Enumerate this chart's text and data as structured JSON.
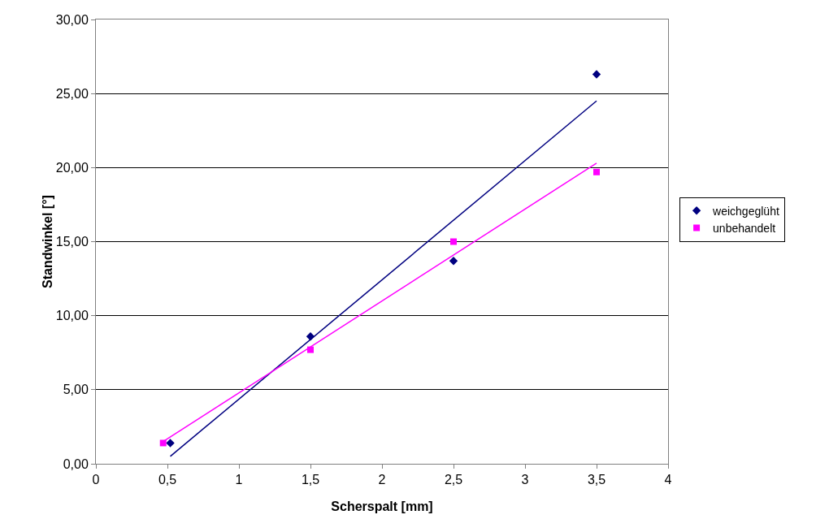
{
  "chart_data": {
    "type": "scatter",
    "xlabel": "Scherspalt [mm]",
    "ylabel": "Standwinkel [°]",
    "series": [
      {
        "name": "weichgeglüht",
        "color": "#000080",
        "marker": "diamond",
        "x": [
          0.52,
          1.5,
          2.5,
          3.5
        ],
        "values": [
          1.4,
          8.6,
          13.7,
          26.3
        ]
      },
      {
        "name": "unbehandelt",
        "color": "#ff00ff",
        "marker": "square",
        "x": [
          0.47,
          1.5,
          2.5,
          3.5
        ],
        "values": [
          1.4,
          7.7,
          15.0,
          19.7
        ]
      },
      {
        "type": "line",
        "color": "#000080",
        "marker": "none",
        "x": [
          0.52,
          3.5
        ],
        "values": [
          0.5,
          24.5
        ]
      },
      {
        "type": "line",
        "color": "#ff00ff",
        "marker": "none",
        "x": [
          0.47,
          3.5
        ],
        "values": [
          1.5,
          20.3
        ]
      }
    ],
    "xlim": [
      0,
      4
    ],
    "xticks": [
      0,
      {
        "value": 0.5,
        "label": "0,5"
      },
      1,
      {
        "value": 1.5,
        "label": "1,5"
      },
      2,
      {
        "value": 2.5,
        "label": "2,5"
      },
      3,
      {
        "value": 3.5,
        "label": "3,5"
      },
      4
    ],
    "ylim": [
      0,
      30
    ],
    "yticks": [
      {
        "value": 0,
        "label": "0,00"
      },
      {
        "value": 5,
        "label": "5,00"
      },
      {
        "value": 10,
        "label": "10,00"
      },
      {
        "value": 15,
        "label": "15,00"
      },
      {
        "value": 20,
        "label": "20,00"
      },
      {
        "value": 25,
        "label": "25,00"
      },
      {
        "value": 30,
        "label": "30,00"
      }
    ],
    "grid": "y",
    "legend": "right",
    "line_style": "solid"
  }
}
